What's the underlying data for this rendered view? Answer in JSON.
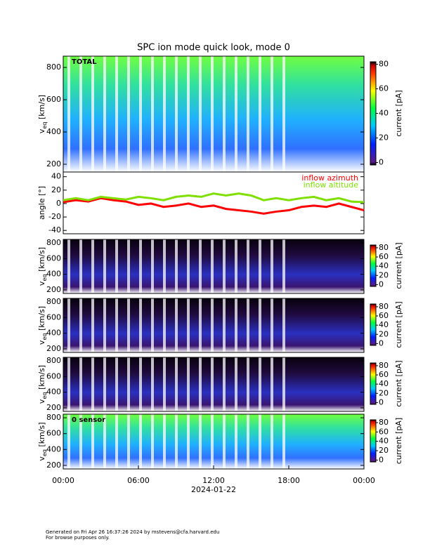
{
  "chart_data": [
    {
      "type": "spectrogram",
      "title": "SPC ion mode quick look, mode 0",
      "panel_label": "TOTAL",
      "ylabel": {
        "main": "v",
        "sub": "eq",
        "unit": " [km/s]"
      },
      "ylim": [
        152,
        870
      ],
      "yticks": [
        200,
        400,
        600,
        800
      ],
      "colorbar": {
        "label": "current [pA]",
        "clim": [
          -2,
          82
        ],
        "ticks": [
          0,
          20,
          40,
          60,
          80
        ]
      }
    },
    {
      "type": "line",
      "ylabel": "angle [°]",
      "xlim": [
        0,
        24
      ],
      "ylim": [
        -45,
        47
      ],
      "yticks": [
        -40,
        -20,
        0,
        20,
        40
      ],
      "x": [
        0,
        1,
        2,
        3,
        4,
        5,
        6,
        7,
        8,
        9,
        10,
        11,
        12,
        13,
        14,
        15,
        16,
        17,
        18,
        19,
        20,
        21,
        22,
        23,
        24
      ],
      "series": [
        {
          "name": "inflow azimuth",
          "color": "#ff0000",
          "values": [
            2,
            5,
            3,
            8,
            5,
            3,
            -2,
            0,
            -5,
            -3,
            0,
            -5,
            -3,
            -8,
            -10,
            -12,
            -15,
            -12,
            -10,
            -5,
            -3,
            -5,
            0,
            -5,
            -10
          ]
        },
        {
          "name": "inflow altitude",
          "color": "#7fe000",
          "values": [
            5,
            8,
            5,
            10,
            8,
            6,
            10,
            8,
            5,
            10,
            12,
            10,
            15,
            12,
            15,
            12,
            5,
            8,
            5,
            8,
            10,
            5,
            8,
            3,
            2
          ]
        }
      ]
    },
    {
      "type": "spectrogram",
      "ylabel": {
        "main": "v",
        "sub": "eq",
        "unit": " [km/s]"
      },
      "ylim": [
        155,
        845
      ],
      "yticks": [
        200,
        400,
        600,
        800
      ],
      "colorbar": {
        "label": "current [pA]",
        "clim": [
          -4,
          86
        ],
        "ticks": [
          0,
          20,
          40,
          60,
          80
        ]
      }
    },
    {
      "type": "spectrogram",
      "ylabel": {
        "main": "v",
        "sub": "eq",
        "unit": " [km/s]"
      },
      "ylim": [
        155,
        845
      ],
      "yticks": [
        200,
        400,
        600,
        800
      ],
      "colorbar": {
        "label": "current [pA]",
        "clim": [
          -4,
          86
        ],
        "ticks": [
          0,
          20,
          40,
          60,
          80
        ]
      }
    },
    {
      "type": "spectrogram",
      "ylabel": {
        "main": "v",
        "sub": "eq",
        "unit": " [km/s]"
      },
      "ylim": [
        155,
        845
      ],
      "yticks": [
        200,
        400,
        600,
        800
      ],
      "colorbar": {
        "label": "current [pA]",
        "clim": [
          -4,
          86
        ],
        "ticks": [
          0,
          20,
          40,
          60,
          80
        ]
      }
    },
    {
      "type": "spectrogram",
      "panel_label": "0 sensor",
      "ylabel": {
        "main": "v",
        "sub": "eq",
        "unit": " [km/s]"
      },
      "ylim": [
        155,
        845
      ],
      "yticks": [
        200,
        400,
        600,
        800
      ],
      "colorbar": {
        "label": "current [pA]",
        "clim": [
          -4,
          86
        ],
        "ticks": [
          0,
          20,
          40,
          60,
          80
        ]
      },
      "xlabel": "2024-01-22",
      "xlim": [
        0,
        24
      ],
      "xticks": [
        {
          "value": 0,
          "label": "00:00"
        },
        {
          "value": 6,
          "label": "06:00"
        },
        {
          "value": 12,
          "label": "12:00"
        },
        {
          "value": 18,
          "label": "18:00"
        },
        {
          "value": 24,
          "label": "00:00"
        }
      ]
    }
  ],
  "footer": {
    "lines": [
      "Generated on Fri Apr 26 16:37:26 2024 by mstevens@cfa.harvard.edu",
      "For browse purposes only."
    ]
  }
}
